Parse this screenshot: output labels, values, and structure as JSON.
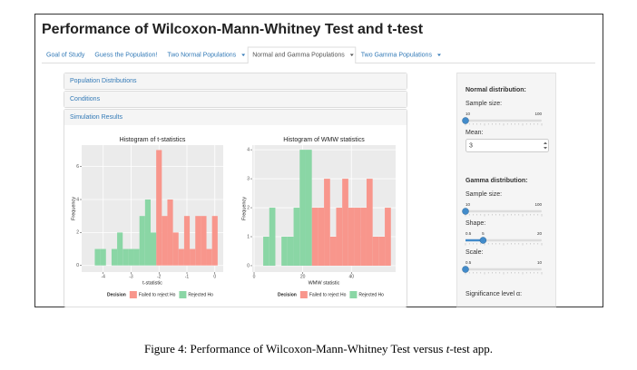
{
  "header": {
    "title": "Performance of Wilcoxon-Mann-Whitney Test and t-test"
  },
  "tabs": [
    {
      "label": "Goal of Study",
      "dropdown": false,
      "active": false
    },
    {
      "label": "Guess the Population!",
      "dropdown": false,
      "active": false
    },
    {
      "label": "Two Normal Populations",
      "dropdown": true,
      "active": false
    },
    {
      "label": "Normal and Gamma Populations",
      "dropdown": true,
      "active": true
    },
    {
      "label": "Two Gamma Populations",
      "dropdown": true,
      "active": false
    }
  ],
  "panels": [
    "Population Distributions",
    "Conditions",
    "Simulation Results"
  ],
  "chart_data": [
    {
      "type": "histogram",
      "title": "Histogram of t-statistics",
      "x_label": "t-statistic",
      "y_label": "Frequency",
      "bins": [
        -4.3,
        -4.1,
        -3.9,
        -3.7,
        -3.5,
        -3.3,
        -3.1,
        -2.9,
        -2.7,
        -2.5,
        -2.3,
        -2.1,
        -1.9,
        -1.7,
        -1.5,
        -1.3,
        -1.1,
        -0.9,
        -0.7,
        -0.5,
        -0.3,
        -0.1,
        0.1
      ],
      "series": [
        {
          "name": "Failed to reject Ho",
          "color": "#f8968c",
          "values": [
            0,
            0,
            0,
            0,
            0,
            0,
            0,
            0,
            0,
            0,
            0,
            7,
            3,
            4,
            2,
            1,
            3,
            1,
            3,
            3,
            1,
            3
          ]
        },
        {
          "name": "Rejected Ho",
          "color": "#8ad6a5",
          "values": [
            1,
            1,
            0,
            1,
            2,
            1,
            1,
            1,
            3,
            4,
            2,
            0,
            0,
            0,
            0,
            0,
            0,
            0,
            0,
            0,
            0,
            0
          ]
        }
      ],
      "xlim": [
        -4.77,
        0.3
      ],
      "ylim": [
        -0.4,
        7.3
      ],
      "xticks": [
        -4,
        -3,
        -2,
        -1,
        0
      ],
      "yticks": [
        0,
        2,
        4,
        6
      ],
      "grid": true,
      "legend_title": "Decision"
    },
    {
      "type": "histogram",
      "title": "Histogram of WMW statistics",
      "x_label": "WMW statistic",
      "y_label": "Frequency",
      "bins": [
        3.75,
        6.25,
        8.75,
        11.25,
        13.75,
        16.25,
        18.75,
        21.25,
        23.75,
        26.25,
        28.75,
        31.25,
        33.75,
        36.25,
        38.75,
        41.25,
        43.75,
        46.25,
        48.75,
        51.25,
        53.75,
        56.25
      ],
      "series": [
        {
          "name": "Failed to reject Ho",
          "color": "#f8968c",
          "values": [
            0,
            0,
            0,
            0,
            0,
            0,
            0,
            0,
            2,
            2,
            3,
            1,
            2,
            3,
            2,
            2,
            2,
            3,
            1,
            1,
            2
          ]
        },
        {
          "name": "Rejected Ho",
          "color": "#8ad6a5",
          "values": [
            1,
            2,
            0,
            1,
            1,
            2,
            4,
            4,
            0,
            0,
            0,
            0,
            0,
            0,
            0,
            0,
            0,
            0,
            0,
            0,
            0
          ]
        }
      ],
      "xlim": [
        -0.75,
        58.2
      ],
      "ylim": [
        -0.22,
        4.16
      ],
      "xticks": [
        0,
        20,
        40
      ],
      "yticks": [
        0,
        1,
        2,
        3,
        4
      ],
      "grid": true,
      "legend_title": "Decision"
    }
  ],
  "sidebar": {
    "sections": [
      {
        "heading": "Normal distribution:",
        "inputs": [
          {
            "label": "Sample size:",
            "type": "slider",
            "min": 10,
            "max": 100,
            "value": 10
          },
          {
            "label": "Mean:",
            "type": "numeric",
            "value": 3
          }
        ]
      },
      {
        "heading": "Gamma distribution:",
        "inputs": [
          {
            "label": "Sample size:",
            "type": "slider",
            "min": 10,
            "max": 100,
            "value": 10
          },
          {
            "label": "Shape:",
            "type": "slider",
            "min": 0.5,
            "max": 20,
            "value": 5
          },
          {
            "label": "Scale:",
            "type": "slider",
            "min": 0.5,
            "max": 10,
            "value": 0.5
          }
        ]
      },
      {
        "inputs": [
          {
            "label": "Significance level α:",
            "type": "slider"
          }
        ]
      }
    ]
  },
  "caption": {
    "parts": [
      "Figure 4: Performance of Wilcoxon-Mann-Whitney Test versus ",
      "t",
      "-test app."
    ],
    "italic": [
      false,
      true,
      false
    ]
  }
}
